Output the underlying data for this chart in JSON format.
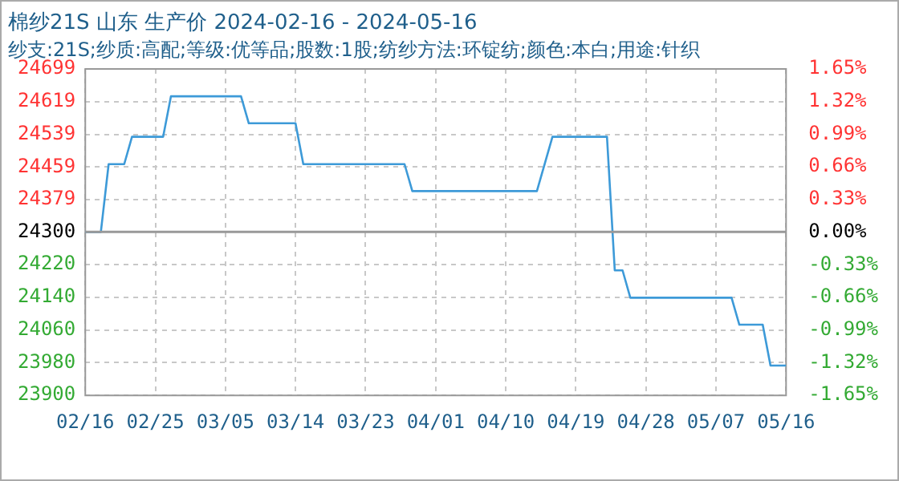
{
  "chart_data": {
    "type": "line",
    "title": "棉纱21S 山东 生产价 2024-02-16 - 2024-05-16",
    "subtitle": "纱支:21S;纱质:高配;等级:优等品;股数:1股;纺纱方法:环锭纺;颜色:本白;用途:针织",
    "x": [
      "2024-02-16",
      "2024-02-18",
      "2024-02-19",
      "2024-02-21",
      "2024-02-22",
      "2024-02-26",
      "2024-02-27",
      "2024-03-07",
      "2024-03-08",
      "2024-03-14",
      "2024-03-15",
      "2024-03-28",
      "2024-03-29",
      "2024-04-14",
      "2024-04-16",
      "2024-04-23",
      "2024-04-24",
      "2024-04-25",
      "2024-04-26",
      "2024-05-09",
      "2024-05-10",
      "2024-05-13",
      "2024-05-14",
      "2024-05-16"
    ],
    "series": [
      {
        "color": "#3d9ad8",
        "values": [
          24300,
          24300,
          24466,
          24466,
          24533,
          24533,
          24632,
          24632,
          24566,
          24566,
          24466,
          24466,
          24400,
          24400,
          24533,
          24533,
          24206,
          24206,
          24139,
          24139,
          24073,
          24073,
          23973,
          23973
        ]
      }
    ],
    "xlim": [
      "2024-02-16",
      "2024-05-16"
    ],
    "xticks": [
      {
        "value": "2024-02-16",
        "label": "02/16"
      },
      {
        "value": "2024-02-25",
        "label": "02/25"
      },
      {
        "value": "2024-03-05",
        "label": "03/05"
      },
      {
        "value": "2024-03-14",
        "label": "03/14"
      },
      {
        "value": "2024-03-23",
        "label": "03/23"
      },
      {
        "value": "2024-04-01",
        "label": "04/01"
      },
      {
        "value": "2024-04-10",
        "label": "04/10"
      },
      {
        "value": "2024-04-19",
        "label": "04/19"
      },
      {
        "value": "2024-04-28",
        "label": "04/28"
      },
      {
        "value": "2024-05-07",
        "label": "05/07"
      },
      {
        "value": "2024-05-16",
        "label": "05/16"
      }
    ],
    "ylim": [
      23900,
      24699
    ],
    "yticks": [
      23900,
      23980,
      24060,
      24140,
      24220,
      24300,
      24379,
      24459,
      24539,
      24619,
      24699
    ],
    "y2lim": [
      -1.65,
      1.65
    ],
    "y2ticks": [
      {
        "value": -1.65,
        "label": "-1.65%"
      },
      {
        "value": -1.32,
        "label": "-1.32%"
      },
      {
        "value": -0.99,
        "label": "-0.99%"
      },
      {
        "value": -0.66,
        "label": "-0.66%"
      },
      {
        "value": -0.33,
        "label": "-0.33%"
      },
      {
        "value": 0,
        "label": "0.00%"
      },
      {
        "value": 0.33,
        "label": "0.33%"
      },
      {
        "value": 0.66,
        "label": "0.66%"
      },
      {
        "value": 0.99,
        "label": "0.99%"
      },
      {
        "value": 1.32,
        "label": "1.32%"
      },
      {
        "value": 1.65,
        "label": "1.65%"
      }
    ],
    "ref_lines": [
      {
        "axis": "y",
        "value": 24300,
        "color": "#999999"
      }
    ],
    "grid": true,
    "legend": false,
    "marker": "none",
    "line_style": "solid"
  }
}
